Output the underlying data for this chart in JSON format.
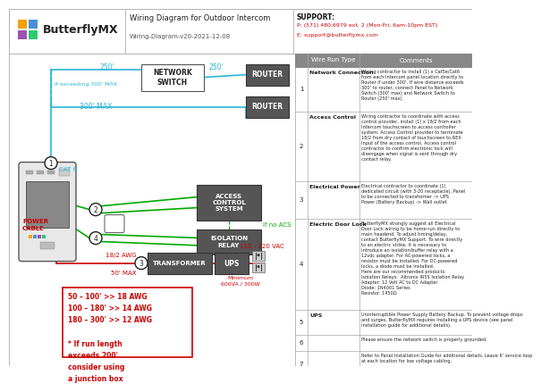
{
  "title": "Wiring Diagram for Outdoor Intercom",
  "subtitle": "Wiring-Diagram-v20-2021-12-08",
  "logo_text": "ButterflyMX",
  "support_label": "SUPPORT:",
  "support_phone": "P: (571) 480.6979 ext. 2 (Mon-Fri, 6am-10pm EST)",
  "support_email": "E: support@butterflymx.com",
  "bg_color": "#ffffff",
  "cyan": "#29b5d8",
  "green": "#00aa00",
  "red": "#cc0000",
  "dark": "#222222",
  "box_dark": "#555555",
  "router_bg": "#555555",
  "table_hdr_bg": "#888888",
  "logo_colors": [
    "#f5a200",
    "#4a8fd4",
    "#9c55b0",
    "#2dc870"
  ],
  "table_rows": [
    {
      "num": "1",
      "type": "Network Connection",
      "comment": "Wiring contractor to install (1) x Cat5e/Cat6\nfrom each Intercom panel location directly to\nRouter if under 300'. If wire distance exceeds\n300' to router, connect Panel to Network\nSwitch (300' max) and Network Switch to\nRouter (250' max)."
    },
    {
      "num": "2",
      "type": "Access Control",
      "comment": "Wiring contractor to coordinate with access\ncontrol provider, install (1) x 18/2 from each\nIntercom touchscreen to access controller\nsystem. Access Control provider to terminate\n18/2 from dry contact of touchscreen to REX\nInput of the access control. Access control\ncontractor to confirm electronic lock will\ndisengage when signal is sent through dry\ncontact relay."
    },
    {
      "num": "3",
      "type": "Electrical Power",
      "comment": "Electrical contractor to coordinate (1)\ndedicated circuit (with 3-20 receptacle). Panel\nto be connected to transformer -> UPS\nPower (Battery Backup) -> Wall outlet"
    },
    {
      "num": "4",
      "type": "Electric Door Lock",
      "comment": "ButterflyMX strongly suggest all Electrical\nDoor Lock wiring to be home-run directly to\nmain headend. To adjust timing/delay,\ncontact ButterflyMX Support. To wire directly\nto an electric strike, it is necessary to\nintroduce an isolation/buffer relay with a\n12vdc adapter. For AC-powered locks, a\nresistor must be installed. For DC-powered\nlocks, a diode must be installed.\nHere are our recommended products:\nIsolation Relays:  Altronix IR5S Isolation Relay\nAdapter: 12 Volt AC to DC Adapter\nDiode: 1N4001 Series\nResistor: 1450Ω"
    },
    {
      "num": "5",
      "type": "UPS",
      "comment": "Uninterruptible Power Supply Battery Backup. To prevent voltage drops\nand surges, ButterflyMX requires installing a UPS device (see panel\ninstallation guide for additional details)."
    },
    {
      "num": "6",
      "type": "",
      "comment": "Please ensure the network switch is properly grounded."
    },
    {
      "num": "7",
      "type": "",
      "comment": "Refer to Panel Installation Guide for additional details. Leave 6' service loop\nat each location for low voltage cabling."
    }
  ]
}
